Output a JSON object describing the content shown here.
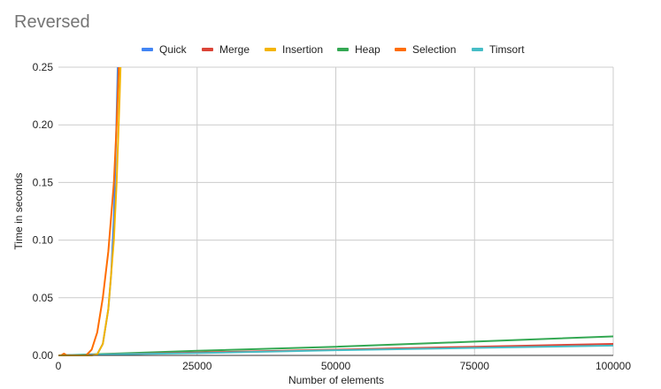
{
  "chart_data": {
    "type": "line",
    "title": "Reversed",
    "xlabel": "Number of elements",
    "ylabel": "Time in seconds",
    "xlim": [
      0,
      100000
    ],
    "ylim": [
      0,
      0.25
    ],
    "x_ticks": [
      0,
      25000,
      50000,
      75000,
      100000
    ],
    "x_tick_labels": [
      "0",
      "25000",
      "50000",
      "75000",
      "100000"
    ],
    "y_ticks": [
      0,
      0.05,
      0.1,
      0.15,
      0.2,
      0.25
    ],
    "y_tick_labels": [
      "0.00",
      "0.05",
      "0.10",
      "0.15",
      "0.20",
      "0.25"
    ],
    "grid": true,
    "legend_position": "top",
    "series": [
      {
        "name": "Quick",
        "color": "#4285f4",
        "x": [
          0,
          5000,
          7000,
          8000,
          9000,
          9500,
          10000,
          10400,
          10700
        ],
        "y": [
          0,
          0,
          0.001,
          0.01,
          0.04,
          0.07,
          0.12,
          0.19,
          0.25
        ]
      },
      {
        "name": "Merge",
        "color": "#db4437",
        "x": [
          0,
          10000,
          25000,
          50000,
          75000,
          100000
        ],
        "y": [
          0,
          0.001,
          0.0025,
          0.005,
          0.0075,
          0.01
        ]
      },
      {
        "name": "Insertion",
        "color": "#f4b400",
        "x": [
          0,
          6000,
          7000,
          8000,
          9000,
          10000,
          10500,
          11000,
          11200
        ],
        "y": [
          0,
          0,
          0.001,
          0.01,
          0.04,
          0.1,
          0.15,
          0.22,
          0.25
        ]
      },
      {
        "name": "Heap",
        "color": "#34a853",
        "x": [
          0,
          10000,
          25000,
          50000,
          75000,
          100000
        ],
        "y": [
          0,
          0.0015,
          0.004,
          0.0075,
          0.012,
          0.0165
        ]
      },
      {
        "name": "Selection",
        "color": "#ff6d01",
        "x": [
          0,
          500,
          1000,
          1500,
          3000,
          5000,
          6000,
          7000,
          8000,
          9000,
          10000,
          10500,
          10900
        ],
        "y": [
          0,
          0,
          0.0015,
          0,
          0,
          0,
          0.005,
          0.02,
          0.05,
          0.09,
          0.15,
          0.2,
          0.25
        ]
      },
      {
        "name": "Timsort",
        "color": "#46bdc6",
        "x": [
          0,
          10000,
          25000,
          50000,
          75000,
          100000
        ],
        "y": [
          0,
          0.001,
          0.002,
          0.0045,
          0.0065,
          0.0085
        ]
      }
    ]
  }
}
